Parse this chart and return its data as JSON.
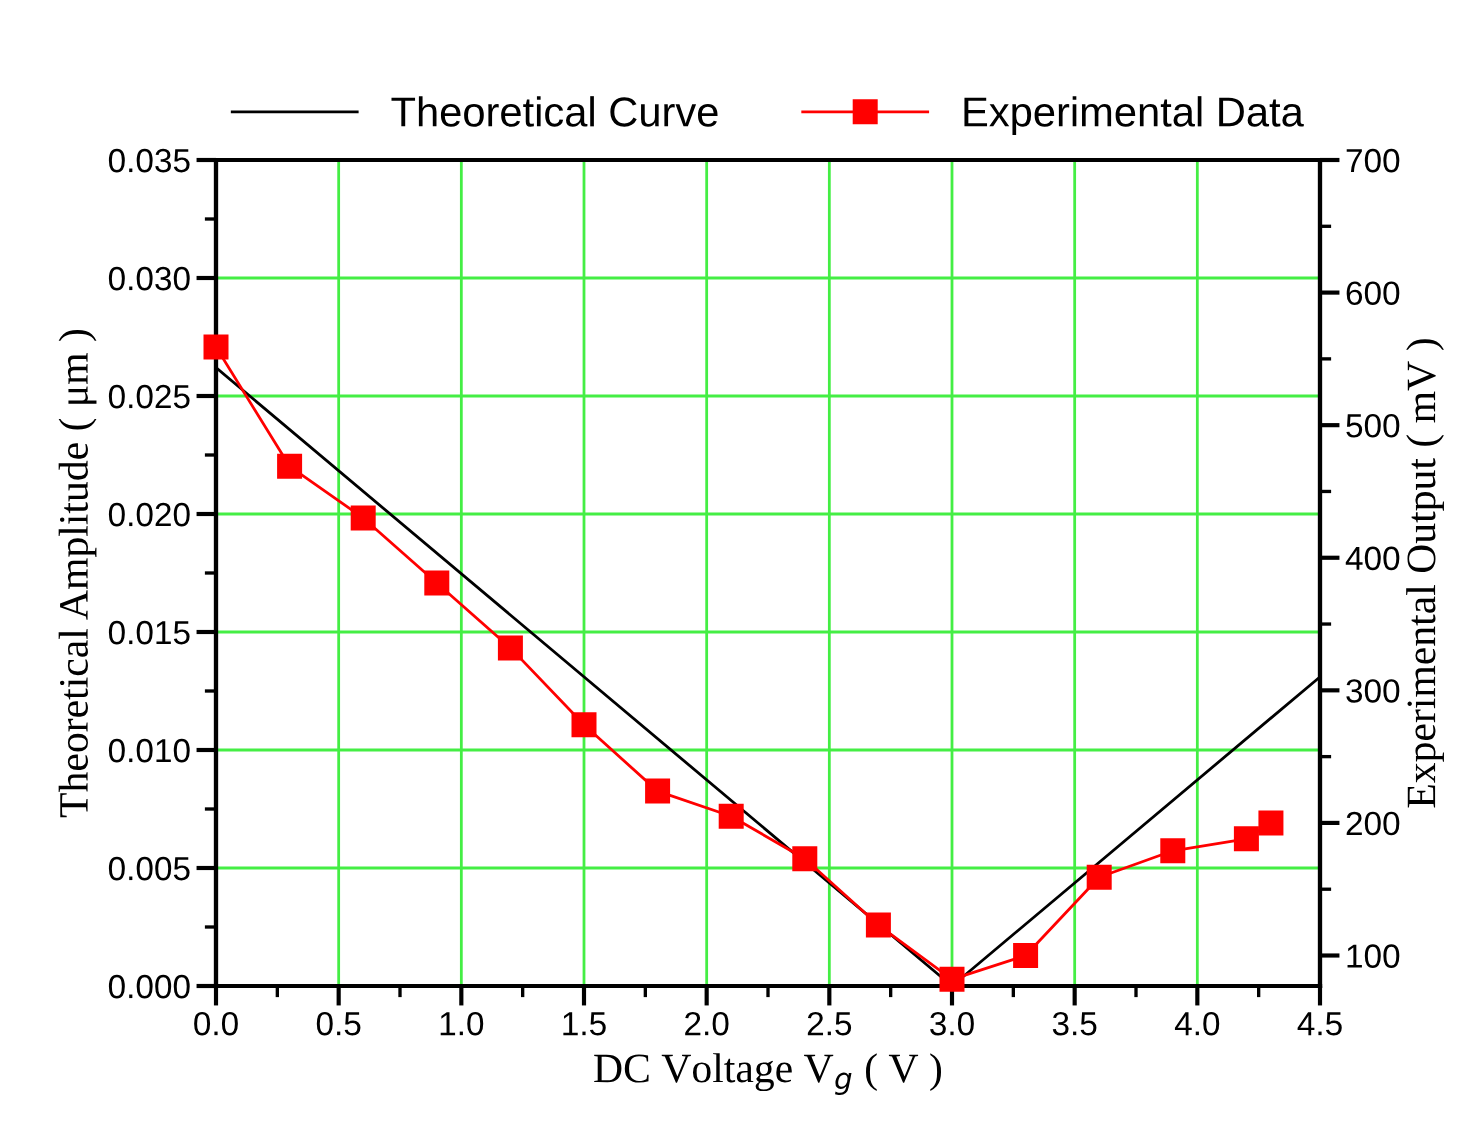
{
  "chart_data": {
    "type": "line",
    "xlabel": "DC Voltage V$_{g}$ ( V )",
    "ylabel": "Theoretical Amplitude ( μm )",
    "y2label": "Experimental Output ( mV )",
    "xlim": [
      0,
      4.5
    ],
    "xticks": [
      {
        "value": 0,
        "label": "0.0"
      },
      {
        "value": 0.5,
        "label": "0.5"
      },
      {
        "value": 1,
        "label": "1.0"
      },
      {
        "value": 1.5,
        "label": "1.5"
      },
      {
        "value": 2,
        "label": "2.0"
      },
      {
        "value": 2.5,
        "label": "2.5"
      },
      {
        "value": 3,
        "label": "3.0"
      },
      {
        "value": 3.5,
        "label": "3.5"
      },
      {
        "value": 4,
        "label": "4.0"
      },
      {
        "value": 4.5,
        "label": "4.5"
      }
    ],
    "ylim": [
      0,
      0.035
    ],
    "yticks": [
      {
        "value": 0,
        "label": "0.000"
      },
      {
        "value": 0.005,
        "label": "0.005"
      },
      {
        "value": 0.01,
        "label": "0.010"
      },
      {
        "value": 0.015,
        "label": "0.015"
      },
      {
        "value": 0.02,
        "label": "0.020"
      },
      {
        "value": 0.025,
        "label": "0.025"
      },
      {
        "value": 0.03,
        "label": "0.030"
      },
      {
        "value": 0.035,
        "label": "0.035"
      }
    ],
    "y2lim": [
      77,
      700
    ],
    "y2ticks": [
      100,
      200,
      300,
      400,
      500,
      600,
      700
    ],
    "grid": true,
    "legend": "top",
    "series": [
      {
        "name": "Theoretical Curve",
        "color": "#000000",
        "x": [
          0,
          3,
          4.5
        ],
        "values": [
          0.0262,
          0,
          0.0131
        ],
        "marker": "none"
      },
      {
        "name": "Experimental Data",
        "color": "#ff0000",
        "axis": "y2",
        "marker": "square",
        "x": [
          0,
          0.3,
          0.6,
          0.9,
          1.2,
          1.5,
          1.8,
          2.1,
          2.4,
          2.7,
          3.0,
          3.3,
          3.6,
          3.9,
          4.2,
          4.3
        ],
        "values": [
          559,
          469,
          430,
          381,
          332,
          274,
          224,
          205,
          173,
          123,
          82,
          100,
          159,
          179,
          188,
          200
        ]
      }
    ]
  }
}
